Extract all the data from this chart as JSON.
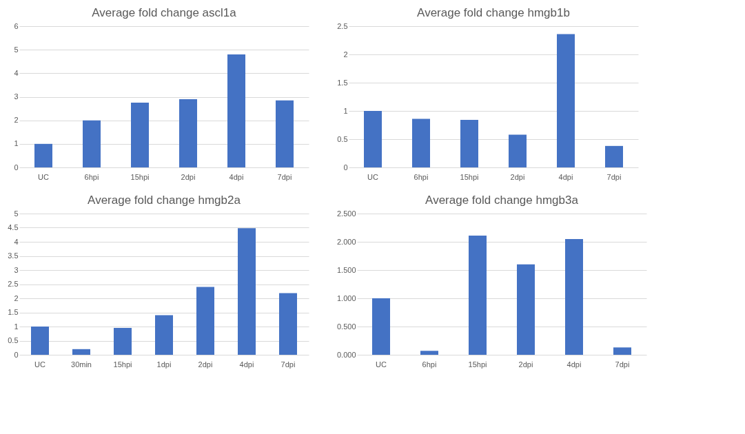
{
  "chart_data": [
    {
      "type": "bar",
      "title": "Average fold change ascl1a",
      "categories": [
        "UC",
        "6hpi",
        "15hpi",
        "2dpi",
        "4dpi",
        "7dpi"
      ],
      "values": [
        1.0,
        2.0,
        2.75,
        2.9,
        4.8,
        2.85
      ],
      "color": "#4472c4",
      "ylim": [
        0,
        6
      ],
      "yticks": [
        0,
        1,
        2,
        3,
        4,
        5,
        6
      ],
      "grid": "y",
      "legend": false
    },
    {
      "type": "bar",
      "title": "Average fold change hmgb1b",
      "categories": [
        "UC",
        "6hpi",
        "15hpi",
        "2dpi",
        "4dpi",
        "7dpi"
      ],
      "values": [
        1.0,
        0.86,
        0.84,
        0.58,
        2.36,
        0.38
      ],
      "color": "#4472c4",
      "ylim": [
        0,
        2.5
      ],
      "yticks": [
        0,
        0.5,
        1,
        1.5,
        2,
        2.5
      ],
      "grid": "y",
      "legend": false
    },
    {
      "type": "bar",
      "title": "Average fold change    hmgb2a",
      "categories": [
        "UC",
        "30min",
        "15hpi",
        "1dpi",
        "2dpi",
        "4dpi",
        "7dpi"
      ],
      "values": [
        1.0,
        0.2,
        0.95,
        1.4,
        2.4,
        4.48,
        2.18
      ],
      "color": "#4472c4",
      "ylim": [
        0,
        5
      ],
      "yticks": [
        0,
        0.5,
        1,
        1.5,
        2,
        2.5,
        3,
        3.5,
        4,
        4.5,
        5
      ],
      "grid": "y",
      "legend": false
    },
    {
      "type": "bar",
      "title": "Average fold change hmgb3a",
      "categories": [
        "UC",
        "6hpi",
        "15hpi",
        "2dpi",
        "4dpi",
        "7dpi"
      ],
      "values": [
        1.0,
        0.07,
        2.11,
        1.6,
        2.05,
        0.13
      ],
      "color": "#4472c4",
      "ylim": [
        0,
        2.5
      ],
      "yticks": [
        {
          "value": 0,
          "label": "0.000"
        },
        {
          "value": 0.5,
          "label": "0.500"
        },
        {
          "value": 1,
          "label": "1.000"
        },
        {
          "value": 1.5,
          "label": "1.500"
        },
        {
          "value": 2,
          "label": "2.000"
        },
        {
          "value": 2.5,
          "label": "2.500"
        }
      ],
      "grid": "y",
      "legend": false
    }
  ]
}
